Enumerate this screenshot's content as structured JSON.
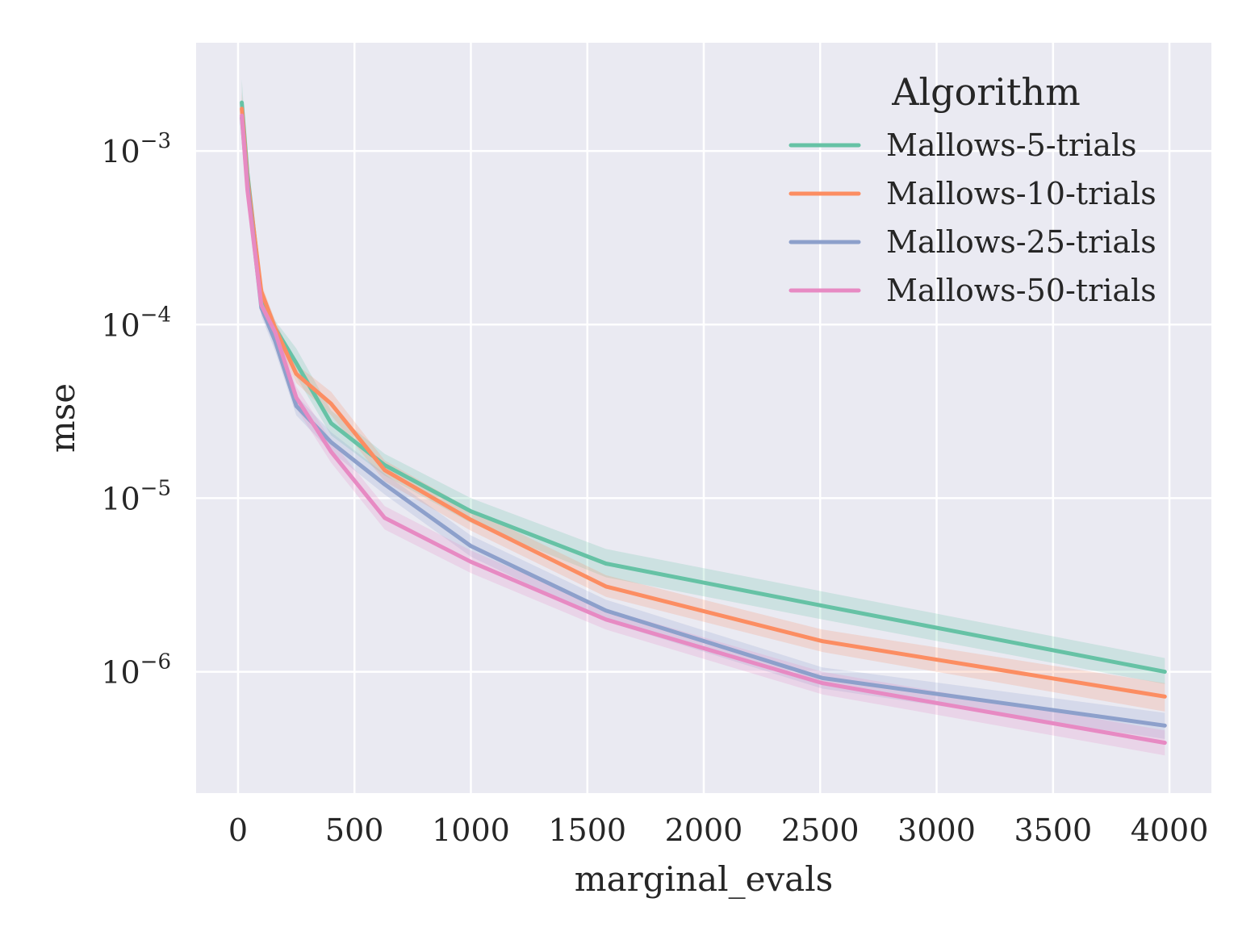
{
  "chart_data": {
    "type": "line",
    "title": "",
    "xlabel": "marginal_evals",
    "ylabel": "mse",
    "xscale": "linear",
    "yscale": "log",
    "xlim": [
      -180,
      4180
    ],
    "ylim": [
      2e-07,
      0.0042
    ],
    "xticks": [
      0,
      500,
      1000,
      1500,
      2000,
      2500,
      3000,
      3500,
      4000
    ],
    "xtick_labels": [
      "0",
      "500",
      "1000",
      "1500",
      "2000",
      "2500",
      "3000",
      "3500",
      "4000"
    ],
    "yticks": [
      1e-06,
      1e-05,
      0.0001,
      0.001
    ],
    "ytick_labels": [
      {
        "base": "10",
        "exp": "−6"
      },
      {
        "base": "10",
        "exp": "−5"
      },
      {
        "base": "10",
        "exp": "−4"
      },
      {
        "base": "10",
        "exp": "−3"
      }
    ],
    "grid": true,
    "background": "#eaeaf2",
    "legend": {
      "title": "Algorithm",
      "placement": "top-right"
    },
    "x": [
      16,
      40,
      100,
      160,
      250,
      400,
      630,
      1000,
      1580,
      2510,
      3980
    ],
    "series": [
      {
        "name": "Mallows-5-trials",
        "color": "#66c2a5",
        "values": [
          0.0019,
          0.00075,
          0.000145,
          9.5e-05,
          6e-05,
          2.7e-05,
          1.55e-05,
          8.4e-06,
          4.2e-06,
          2.4e-06,
          1e-06
        ],
        "lower": [
          0.00145,
          0.00062,
          0.00013,
          8.5e-05,
          5e-05,
          2.3e-05,
          1.35e-05,
          7.2e-06,
          3.5e-06,
          2e-06,
          8.5e-07
        ],
        "upper": [
          0.0026,
          0.00088,
          0.000162,
          0.000105,
          7.3e-05,
          3.2e-05,
          1.8e-05,
          1e-05,
          5.1e-06,
          2.9e-06,
          1.2e-06
        ]
      },
      {
        "name": "Mallows-10-trials",
        "color": "#fc8d62",
        "values": [
          0.00175,
          0.0007,
          0.000155,
          9.5e-05,
          5.2e-05,
          3.5e-05,
          1.45e-05,
          7.5e-06,
          3.1e-06,
          1.5e-06,
          7.2e-07
        ],
        "lower": [
          0.0014,
          0.00058,
          0.000138,
          8.5e-05,
          4.6e-05,
          3e-05,
          1.25e-05,
          6.5e-06,
          2.7e-06,
          1.3e-06,
          5.9e-07
        ],
        "upper": [
          0.0022,
          0.00083,
          0.000172,
          0.000105,
          5.9e-05,
          4.1e-05,
          1.65e-05,
          8.6e-06,
          3.6e-06,
          1.75e-06,
          8.6e-07
        ]
      },
      {
        "name": "Mallows-25-trials",
        "color": "#8da0cb",
        "values": [
          0.00155,
          0.00065,
          0.000125,
          8e-05,
          3.4e-05,
          2.1e-05,
          1.2e-05,
          5.3e-06,
          2.25e-06,
          9.2e-07,
          4.9e-07
        ],
        "lower": [
          0.00125,
          0.00055,
          0.000112,
          7e-05,
          3e-05,
          1.85e-05,
          1.05e-05,
          4.6e-06,
          1.95e-06,
          8e-07,
          4.1e-07
        ],
        "upper": [
          0.00195,
          0.00076,
          0.00014,
          9e-05,
          3.9e-05,
          2.4e-05,
          1.38e-05,
          6.1e-06,
          2.6e-06,
          1.06e-06,
          5.8e-07
        ]
      },
      {
        "name": "Mallows-50-trials",
        "color": "#e78ac3",
        "values": [
          0.0016,
          0.0006,
          0.00013,
          9e-05,
          3.8e-05,
          1.85e-05,
          7.7e-06,
          4.3e-06,
          2e-06,
          8.6e-07,
          3.9e-07
        ],
        "lower": [
          0.0013,
          0.00051,
          0.000116,
          7.9e-05,
          3.3e-05,
          1.6e-05,
          6.6e-06,
          3.7e-06,
          1.75e-06,
          7.4e-07,
          3.3e-07
        ],
        "upper": [
          0.002,
          0.0007,
          0.000146,
          0.000102,
          4.4e-05,
          2.15e-05,
          9e-06,
          5e-06,
          2.3e-06,
          1e-06,
          4.6e-07
        ]
      }
    ]
  }
}
